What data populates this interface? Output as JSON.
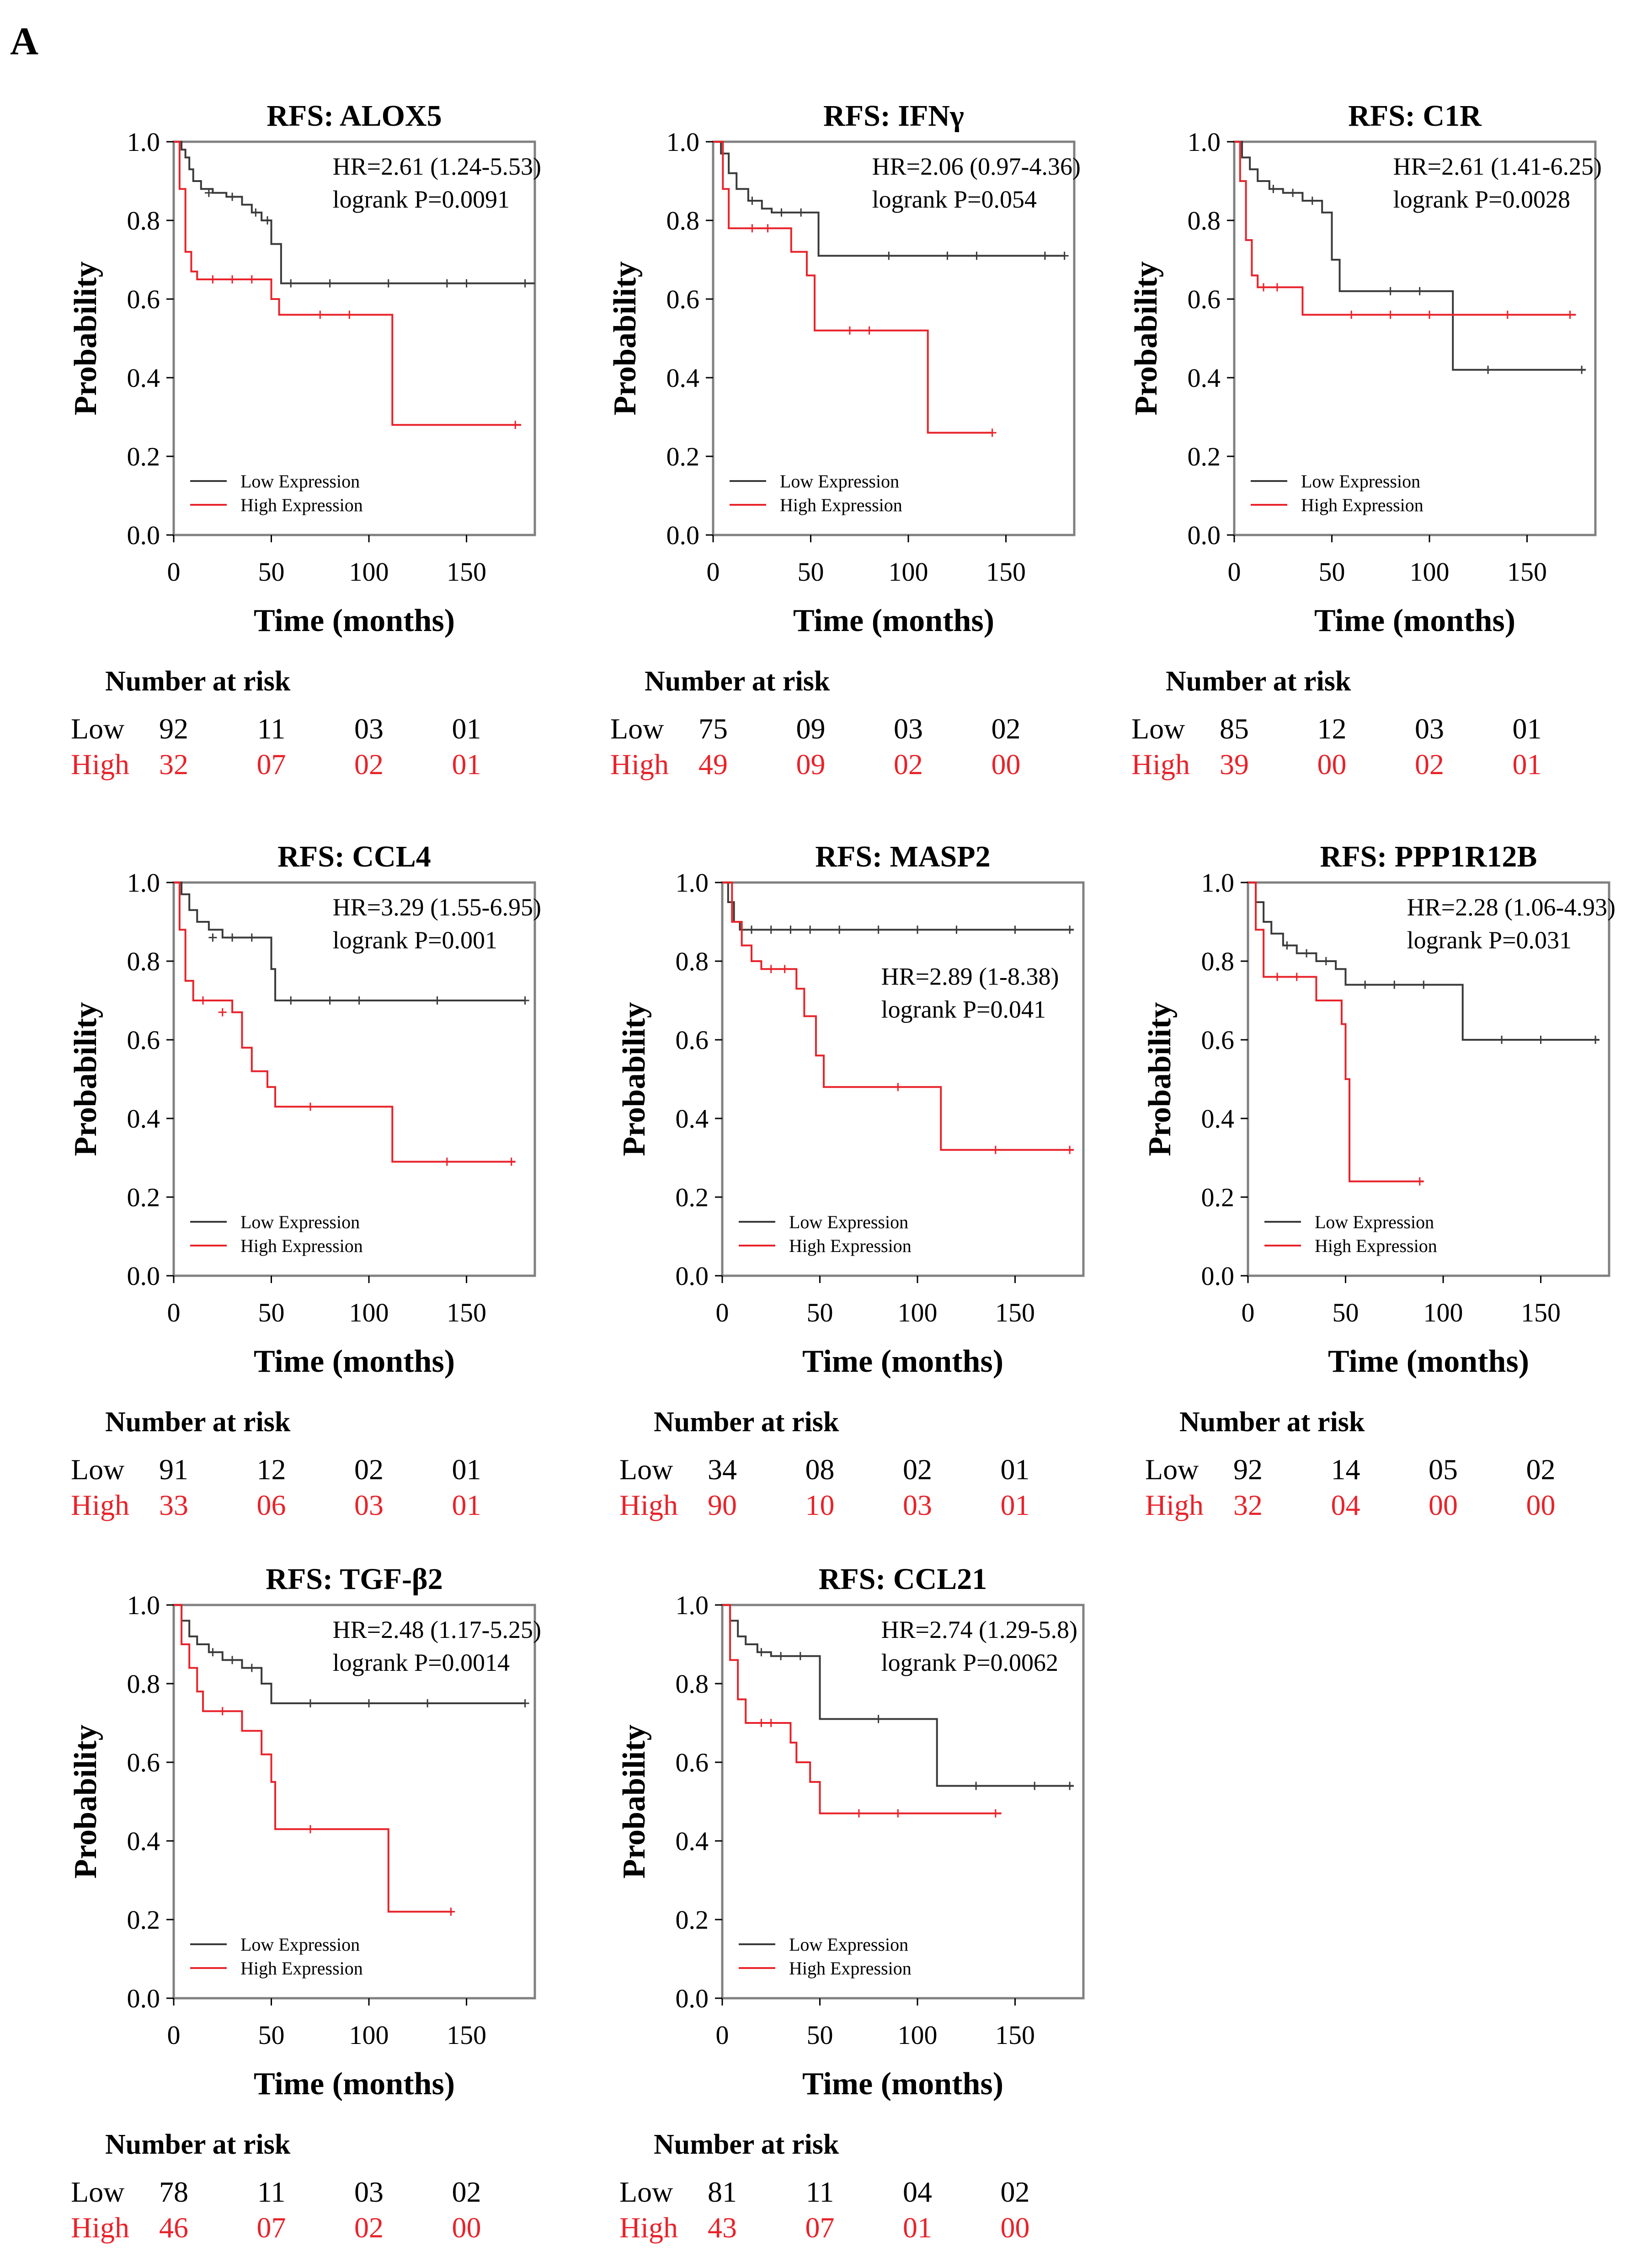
{
  "panel_label": "A",
  "colors": {
    "low": "#3a3a3a",
    "high": "#e8232a",
    "frame": "#808080",
    "text": "#000000"
  },
  "common": {
    "xlabel": "Time (months)",
    "ylabel": "Probability",
    "legend_low": "Low Expression",
    "legend_high": "High Expression",
    "risk_title": "Number at risk",
    "risk_low_label": "Low",
    "risk_high_label": "High",
    "xticks": [
      "0",
      "50",
      "100",
      "150"
    ],
    "yticks": [
      "0.0",
      "0.2",
      "0.4",
      "0.6",
      "0.8",
      "1.0"
    ]
  },
  "chart_data": [
    {
      "type": "line",
      "title": "RFS: ALOX5",
      "hr": "HR=2.61 (1.24-5.53)",
      "p": "logrank P=0.0091",
      "xlim": [
        0,
        185
      ],
      "ylim": [
        0,
        1
      ],
      "series": [
        {
          "name": "Low Expression",
          "x": [
            0,
            4,
            6,
            8,
            10,
            14,
            20,
            27,
            35,
            40,
            45,
            50,
            55,
            185
          ],
          "y": [
            1.0,
            0.98,
            0.96,
            0.93,
            0.9,
            0.88,
            0.87,
            0.86,
            0.84,
            0.82,
            0.8,
            0.74,
            0.64,
            0.64
          ],
          "censor": [
            [
              18,
              0.87
            ],
            [
              30,
              0.86
            ],
            [
              42,
              0.82
            ],
            [
              48,
              0.8
            ],
            [
              60,
              0.64
            ],
            [
              80,
              0.64
            ],
            [
              110,
              0.64
            ],
            [
              140,
              0.64
            ],
            [
              150,
              0.64
            ],
            [
              180,
              0.64
            ]
          ]
        },
        {
          "name": "High Expression",
          "x": [
            0,
            3,
            6,
            9,
            12,
            50,
            54,
            108,
            112,
            178
          ],
          "y": [
            1.0,
            0.88,
            0.72,
            0.67,
            0.65,
            0.6,
            0.56,
            0.56,
            0.28,
            0.28
          ],
          "censor": [
            [
              20,
              0.65
            ],
            [
              30,
              0.65
            ],
            [
              40,
              0.65
            ],
            [
              75,
              0.56
            ],
            [
              90,
              0.56
            ],
            [
              175,
              0.28
            ]
          ]
        }
      ],
      "risk_low": [
        "92",
        "11",
        "03",
        "01"
      ],
      "risk_high": [
        "32",
        "07",
        "02",
        "01"
      ]
    },
    {
      "type": "line",
      "title": "RFS: IFNγ",
      "hr": "HR=2.06 (0.97-4.36)",
      "p": "logrank P=0.054",
      "xlim": [
        0,
        185
      ],
      "ylim": [
        0,
        1
      ],
      "series": [
        {
          "name": "Low Expression",
          "x": [
            0,
            4,
            8,
            12,
            18,
            25,
            30,
            40,
            50,
            54,
            180
          ],
          "y": [
            1.0,
            0.97,
            0.92,
            0.88,
            0.85,
            0.83,
            0.82,
            0.82,
            0.82,
            0.71,
            0.71
          ],
          "censor": [
            [
              20,
              0.85
            ],
            [
              35,
              0.82
            ],
            [
              45,
              0.82
            ],
            [
              90,
              0.71
            ],
            [
              120,
              0.71
            ],
            [
              135,
              0.71
            ],
            [
              170,
              0.71
            ],
            [
              180,
              0.71
            ]
          ]
        },
        {
          "name": "High Expression",
          "x": [
            0,
            5,
            8,
            35,
            40,
            48,
            52,
            105,
            110,
            143
          ],
          "y": [
            1.0,
            0.88,
            0.78,
            0.78,
            0.72,
            0.66,
            0.52,
            0.52,
            0.26,
            0.26
          ],
          "censor": [
            [
              20,
              0.78
            ],
            [
              28,
              0.78
            ],
            [
              70,
              0.52
            ],
            [
              80,
              0.52
            ],
            [
              143,
              0.26
            ]
          ]
        }
      ],
      "risk_low": [
        "75",
        "09",
        "03",
        "02"
      ],
      "risk_high": [
        "49",
        "09",
        "02",
        "00"
      ]
    },
    {
      "type": "line",
      "title": "RFS: C1R",
      "hr": "HR=2.61 (1.41-6.25)",
      "p": "logrank P=0.0028",
      "xlim": [
        0,
        185
      ],
      "ylim": [
        0,
        1
      ],
      "series": [
        {
          "name": "Low Expression",
          "x": [
            0,
            4,
            8,
            12,
            18,
            25,
            35,
            45,
            50,
            54,
            108,
            112,
            180
          ],
          "y": [
            1.0,
            0.96,
            0.93,
            0.9,
            0.88,
            0.87,
            0.85,
            0.82,
            0.7,
            0.62,
            0.62,
            0.42,
            0.42
          ],
          "censor": [
            [
              20,
              0.88
            ],
            [
              30,
              0.87
            ],
            [
              40,
              0.85
            ],
            [
              80,
              0.62
            ],
            [
              95,
              0.62
            ],
            [
              130,
              0.42
            ],
            [
              178,
              0.42
            ]
          ]
        },
        {
          "name": "High Expression",
          "x": [
            0,
            3,
            6,
            9,
            12,
            30,
            35,
            175
          ],
          "y": [
            1.0,
            0.9,
            0.75,
            0.66,
            0.63,
            0.63,
            0.56,
            0.56
          ],
          "censor": [
            [
              15,
              0.63
            ],
            [
              22,
              0.63
            ],
            [
              60,
              0.56
            ],
            [
              80,
              0.56
            ],
            [
              100,
              0.56
            ],
            [
              140,
              0.56
            ],
            [
              172,
              0.56
            ]
          ]
        }
      ],
      "risk_low": [
        "85",
        "12",
        "03",
        "01"
      ],
      "risk_high": [
        "39",
        "00",
        "02",
        "01"
      ]
    },
    {
      "type": "line",
      "title": "RFS: CCL4",
      "hr": "HR=3.29 (1.55-6.95)",
      "p": "logrank P=0.001",
      "xlim": [
        0,
        185
      ],
      "ylim": [
        0,
        1
      ],
      "series": [
        {
          "name": "Low Expression",
          "x": [
            0,
            4,
            8,
            12,
            18,
            25,
            45,
            50,
            52,
            180
          ],
          "y": [
            1.0,
            0.97,
            0.93,
            0.9,
            0.88,
            0.86,
            0.86,
            0.78,
            0.7,
            0.7
          ],
          "censor": [
            [
              20,
              0.86
            ],
            [
              30,
              0.86
            ],
            [
              40,
              0.86
            ],
            [
              60,
              0.7
            ],
            [
              80,
              0.7
            ],
            [
              95,
              0.7
            ],
            [
              135,
              0.7
            ],
            [
              180,
              0.7
            ]
          ]
        },
        {
          "name": "High Expression",
          "x": [
            0,
            3,
            6,
            10,
            30,
            35,
            40,
            48,
            52,
            108,
            112,
            175
          ],
          "y": [
            1.0,
            0.88,
            0.75,
            0.7,
            0.67,
            0.58,
            0.52,
            0.48,
            0.43,
            0.43,
            0.29,
            0.29
          ],
          "censor": [
            [
              15,
              0.7
            ],
            [
              25,
              0.67
            ],
            [
              70,
              0.43
            ],
            [
              140,
              0.29
            ],
            [
              173,
              0.29
            ]
          ]
        }
      ],
      "risk_low": [
        "91",
        "12",
        "02",
        "01"
      ],
      "risk_high": [
        "33",
        "06",
        "03",
        "01"
      ]
    },
    {
      "type": "line",
      "title": "RFS: MASP2",
      "hr": "HR=2.89 (1-8.38)",
      "p": "logrank P=0.041",
      "xlim": [
        0,
        185
      ],
      "ylim": [
        0,
        1
      ],
      "series": [
        {
          "name": "Low Expression",
          "x": [
            0,
            3,
            6,
            9,
            180
          ],
          "y": [
            1.0,
            0.95,
            0.9,
            0.88,
            0.88
          ],
          "censor": [
            [
              15,
              0.88
            ],
            [
              25,
              0.88
            ],
            [
              35,
              0.88
            ],
            [
              45,
              0.88
            ],
            [
              60,
              0.88
            ],
            [
              80,
              0.88
            ],
            [
              100,
              0.88
            ],
            [
              120,
              0.88
            ],
            [
              150,
              0.88
            ],
            [
              178,
              0.88
            ]
          ]
        },
        {
          "name": "High Expression",
          "x": [
            0,
            5,
            10,
            15,
            20,
            30,
            38,
            42,
            48,
            52,
            108,
            112,
            180
          ],
          "y": [
            1.0,
            0.9,
            0.84,
            0.8,
            0.78,
            0.78,
            0.73,
            0.66,
            0.56,
            0.48,
            0.48,
            0.32,
            0.32
          ],
          "censor": [
            [
              25,
              0.78
            ],
            [
              32,
              0.78
            ],
            [
              90,
              0.48
            ],
            [
              140,
              0.32
            ],
            [
              178,
              0.32
            ]
          ]
        }
      ],
      "risk_low": [
        "34",
        "08",
        "02",
        "01"
      ],
      "risk_high": [
        "90",
        "10",
        "03",
        "01"
      ]
    },
    {
      "type": "line",
      "title": "RFS: PPP1R12B",
      "hr": "HR=2.28 (1.06-4.93)",
      "p": "logrank P=0.031",
      "xlim": [
        0,
        185
      ],
      "ylim": [
        0,
        1
      ],
      "series": [
        {
          "name": "Low Expression",
          "x": [
            0,
            4,
            8,
            12,
            18,
            25,
            35,
            45,
            50,
            105,
            110,
            180
          ],
          "y": [
            1.0,
            0.95,
            0.9,
            0.87,
            0.84,
            0.82,
            0.8,
            0.78,
            0.74,
            0.74,
            0.6,
            0.6
          ],
          "censor": [
            [
              20,
              0.84
            ],
            [
              30,
              0.82
            ],
            [
              40,
              0.8
            ],
            [
              60,
              0.74
            ],
            [
              75,
              0.74
            ],
            [
              90,
              0.74
            ],
            [
              130,
              0.6
            ],
            [
              150,
              0.6
            ],
            [
              178,
              0.6
            ]
          ]
        },
        {
          "name": "High Expression",
          "x": [
            0,
            4,
            8,
            30,
            35,
            48,
            50,
            52,
            90
          ],
          "y": [
            1.0,
            0.88,
            0.76,
            0.76,
            0.7,
            0.64,
            0.5,
            0.24,
            0.24
          ],
          "censor": [
            [
              15,
              0.76
            ],
            [
              25,
              0.76
            ],
            [
              88,
              0.24
            ]
          ]
        }
      ],
      "risk_low": [
        "92",
        "14",
        "05",
        "02"
      ],
      "risk_high": [
        "32",
        "04",
        "00",
        "00"
      ]
    },
    {
      "type": "line",
      "title": "RFS: TGF-β2",
      "hr": "HR=2.48 (1.17-5.25)",
      "p": "logrank P=0.0014",
      "xlim": [
        0,
        185
      ],
      "ylim": [
        0,
        1
      ],
      "series": [
        {
          "name": "Low Expression",
          "x": [
            0,
            4,
            8,
            12,
            18,
            25,
            35,
            45,
            50,
            180
          ],
          "y": [
            1.0,
            0.96,
            0.92,
            0.9,
            0.88,
            0.86,
            0.84,
            0.8,
            0.75,
            0.75
          ],
          "censor": [
            [
              20,
              0.88
            ],
            [
              30,
              0.86
            ],
            [
              40,
              0.84
            ],
            [
              70,
              0.75
            ],
            [
              100,
              0.75
            ],
            [
              130,
              0.75
            ],
            [
              180,
              0.75
            ]
          ]
        },
        {
          "name": "High Expression",
          "x": [
            0,
            4,
            8,
            12,
            15,
            35,
            45,
            50,
            52,
            108,
            110,
            143
          ],
          "y": [
            1.0,
            0.9,
            0.84,
            0.78,
            0.73,
            0.68,
            0.62,
            0.55,
            0.43,
            0.43,
            0.22,
            0.22
          ],
          "censor": [
            [
              25,
              0.73
            ],
            [
              70,
              0.43
            ],
            [
              142,
              0.22
            ]
          ]
        }
      ],
      "risk_low": [
        "78",
        "11",
        "03",
        "02"
      ],
      "risk_high": [
        "46",
        "07",
        "02",
        "00"
      ]
    },
    {
      "type": "line",
      "title": "RFS: CCL21",
      "hr": "HR=2.74 (1.29-5.8)",
      "p": "logrank P=0.0062",
      "xlim": [
        0,
        185
      ],
      "ylim": [
        0,
        1
      ],
      "series": [
        {
          "name": "Low Expression",
          "x": [
            0,
            4,
            8,
            12,
            18,
            25,
            45,
            50,
            105,
            110,
            180
          ],
          "y": [
            1.0,
            0.96,
            0.92,
            0.9,
            0.88,
            0.87,
            0.87,
            0.71,
            0.71,
            0.54,
            0.54
          ],
          "censor": [
            [
              20,
              0.88
            ],
            [
              30,
              0.87
            ],
            [
              40,
              0.87
            ],
            [
              80,
              0.71
            ],
            [
              130,
              0.54
            ],
            [
              160,
              0.54
            ],
            [
              178,
              0.54
            ]
          ]
        },
        {
          "name": "High Expression",
          "x": [
            0,
            4,
            8,
            12,
            30,
            35,
            38,
            45,
            50,
            143
          ],
          "y": [
            1.0,
            0.86,
            0.76,
            0.7,
            0.7,
            0.65,
            0.6,
            0.55,
            0.47,
            0.47
          ],
          "censor": [
            [
              20,
              0.7
            ],
            [
              25,
              0.7
            ],
            [
              70,
              0.47
            ],
            [
              90,
              0.47
            ],
            [
              140,
              0.47
            ]
          ]
        }
      ],
      "risk_low": [
        "81",
        "11",
        "04",
        "02"
      ],
      "risk_high": [
        "43",
        "07",
        "01",
        "00"
      ]
    }
  ]
}
